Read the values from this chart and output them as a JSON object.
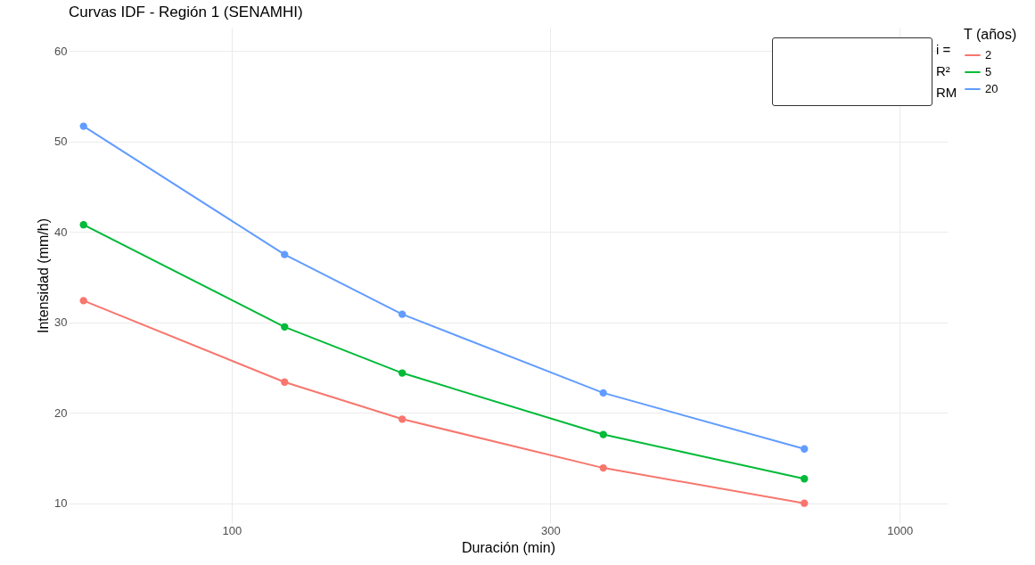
{
  "chart_data": {
    "type": "line",
    "title": "Curvas IDF - Región 1 (SENAMHI)",
    "xlabel": "Duración (min)",
    "ylabel": "Intensidad (mm/h)",
    "legend_title": "T (años)",
    "x": [
      60,
      120,
      180,
      360,
      720
    ],
    "series": [
      {
        "name": "2",
        "color": "#f8766d",
        "values": [
          32.4,
          23.4,
          19.3,
          13.9,
          10.0
        ]
      },
      {
        "name": "5",
        "color": "#00ba38",
        "values": [
          40.8,
          29.5,
          24.4,
          17.6,
          12.7
        ]
      },
      {
        "name": "20",
        "color": "#619cff",
        "values": [
          51.7,
          37.5,
          30.9,
          22.2,
          16.0
        ]
      }
    ],
    "log": "x",
    "xlim": [
      57,
      1180
    ],
    "xticks": [
      100,
      300,
      {
        "value": 1000,
        "label": "1000"
      }
    ],
    "ylim": [
      7.8,
      62.6
    ],
    "yticks": [
      10,
      20,
      30,
      40,
      50,
      60
    ],
    "grid": true,
    "legend": "right",
    "marker": "circle",
    "line_style": "solid",
    "annotations": [
      "i =",
      "R²",
      "RM"
    ]
  }
}
